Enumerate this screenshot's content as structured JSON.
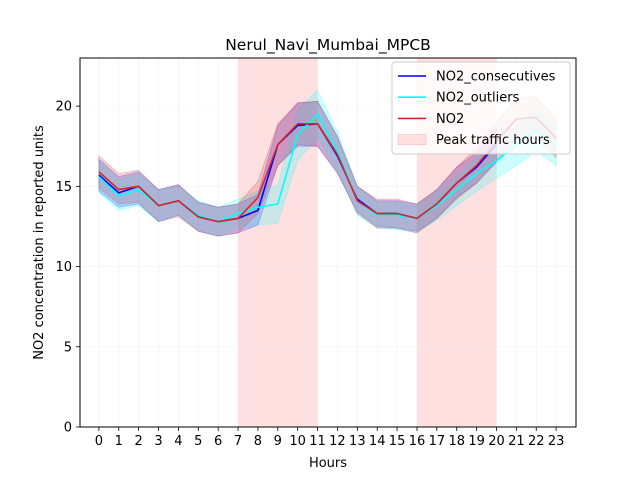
{
  "chart_data": {
    "type": "line",
    "title": "Nerul_Navi_Mumbai_MPCB",
    "xlabel": "Hours",
    "ylabel": "NO2 concentration in reported units",
    "xlim": [
      -0.95,
      24.0
    ],
    "ylim": [
      0,
      23
    ],
    "x": [
      0,
      1,
      2,
      3,
      4,
      5,
      6,
      7,
      8,
      9,
      10,
      11,
      12,
      13,
      14,
      15,
      16,
      17,
      18,
      19,
      20,
      21,
      22,
      23
    ],
    "xticks": [
      0,
      1,
      2,
      3,
      4,
      5,
      6,
      7,
      8,
      9,
      10,
      11,
      12,
      13,
      14,
      15,
      16,
      17,
      18,
      19,
      20,
      21,
      22,
      23
    ],
    "yticks": [
      0,
      5,
      10,
      15,
      20
    ],
    "grid": true,
    "legend_position": "top-right",
    "shaded_regions": [
      {
        "name": "Peak traffic hours",
        "x0": 7,
        "x1": 11,
        "color": "#ffe0e0"
      },
      {
        "name": "Peak traffic hours",
        "x0": 16,
        "x1": 20,
        "color": "#ffe0e0"
      }
    ],
    "series": [
      {
        "name": "NO2_consecutives",
        "color": "#0000ff",
        "values": [
          15.7,
          14.6,
          15.0,
          13.8,
          14.1,
          13.1,
          12.8,
          13.0,
          13.5,
          17.6,
          18.8,
          18.9,
          16.9,
          14.2,
          13.3,
          13.3,
          13.0,
          13.9,
          15.2,
          16.2,
          17.6,
          null,
          null,
          null
        ],
        "lower": [
          14.7,
          13.7,
          13.9,
          12.8,
          13.2,
          12.2,
          11.9,
          12.1,
          12.6,
          16.3,
          17.5,
          17.5,
          15.8,
          13.4,
          12.5,
          12.4,
          12.2,
          13.0,
          14.3,
          15.2,
          16.5,
          null,
          null,
          null
        ],
        "upper": [
          16.7,
          15.6,
          15.9,
          14.8,
          15.1,
          14.0,
          13.7,
          13.9,
          14.5,
          18.8,
          20.2,
          20.3,
          18.1,
          15.0,
          14.1,
          14.1,
          13.9,
          14.8,
          16.2,
          17.1,
          18.6,
          null,
          null,
          null
        ]
      },
      {
        "name": "NO2_outliers",
        "color": "#00ffff",
        "values": [
          15.6,
          14.4,
          14.8,
          13.8,
          14.1,
          13.2,
          12.8,
          13.3,
          13.7,
          13.9,
          18.2,
          19.5,
          17.2,
          14.1,
          13.2,
          13.2,
          13.0,
          13.8,
          14.8,
          15.8,
          16.6,
          17.6,
          18.5,
          17.5
        ],
        "lower": [
          14.6,
          13.5,
          13.8,
          12.8,
          13.2,
          12.3,
          11.9,
          12.4,
          12.6,
          12.7,
          16.6,
          18.0,
          16.0,
          13.2,
          12.4,
          12.3,
          12.1,
          12.9,
          13.8,
          14.7,
          15.5,
          16.3,
          17.2,
          16.3
        ],
        "upper": [
          16.6,
          15.4,
          15.8,
          14.8,
          15.0,
          14.1,
          13.7,
          14.2,
          14.7,
          15.1,
          19.8,
          21.0,
          18.4,
          15.0,
          14.0,
          14.0,
          13.8,
          14.7,
          15.7,
          16.8,
          17.7,
          18.8,
          19.8,
          18.7
        ]
      },
      {
        "name": "NO2",
        "color": "#d62728",
        "values": [
          15.9,
          14.8,
          15.0,
          13.8,
          14.1,
          13.1,
          12.8,
          13.0,
          14.3,
          17.6,
          18.9,
          18.9,
          17.0,
          14.1,
          13.3,
          13.3,
          13.0,
          13.9,
          15.2,
          16.3,
          17.8,
          19.2,
          19.3,
          18.0
        ],
        "lower": [
          14.9,
          13.9,
          14.0,
          12.8,
          13.1,
          12.2,
          11.9,
          12.1,
          13.3,
          16.3,
          17.6,
          17.5,
          15.9,
          13.3,
          12.4,
          12.4,
          12.1,
          13.0,
          14.2,
          15.2,
          16.6,
          17.9,
          18.0,
          16.8
        ],
        "upper": [
          16.9,
          15.8,
          16.0,
          14.8,
          15.1,
          14.0,
          13.7,
          13.9,
          15.3,
          18.9,
          20.2,
          20.3,
          18.1,
          15.0,
          14.2,
          14.2,
          13.9,
          14.8,
          16.2,
          17.4,
          19.0,
          20.5,
          20.6,
          19.2
        ]
      }
    ],
    "legend": [
      {
        "label": "NO2_consecutives",
        "kind": "line",
        "color": "#0000ff"
      },
      {
        "label": "NO2_outliers",
        "kind": "line",
        "color": "#00ffff"
      },
      {
        "label": "NO2",
        "kind": "line",
        "color": "#d62728"
      },
      {
        "label": "Peak traffic hours",
        "kind": "patch",
        "color": "#ffe0e0"
      }
    ]
  }
}
